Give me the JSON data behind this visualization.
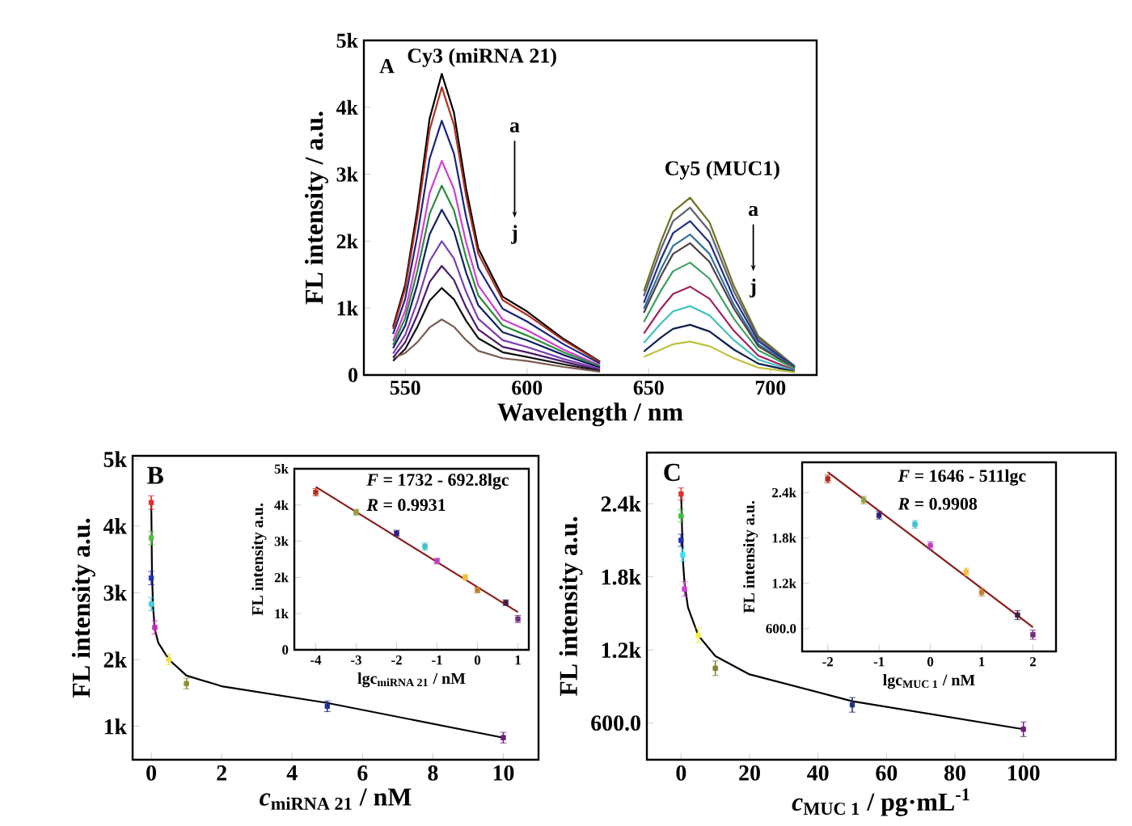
{
  "chart_data": [
    {
      "type": "line",
      "xlabel": "Wavelength / nm",
      "ylabel": "FL intensity / a.u.",
      "xlim": [
        533,
        719
      ],
      "ylim": [
        0,
        5000
      ],
      "xticks": [
        550,
        600,
        650,
        700
      ],
      "yticks": [
        0,
        {
          "value": 1000,
          "label": "1k"
        },
        {
          "value": 2000,
          "label": "2k"
        },
        {
          "value": 3000,
          "label": "3k"
        },
        {
          "value": 4000,
          "label": "4k"
        },
        {
          "value": 5000,
          "label": "5k"
        }
      ],
      "annotations": [
        "A",
        {
          "text": "Cy3 (miRNA 21)",
          "x": 565,
          "y": 4500
        },
        {
          "text": "Cy5 (MUC1)",
          "x": 667,
          "y": 2650
        },
        "a",
        "j",
        "a",
        "j"
      ],
      "series": [
        {
          "color": "#000000",
          "x": [
            545,
            550,
            555,
            560,
            565,
            570,
            575,
            580,
            590,
            600,
            615,
            630
          ],
          "values": [
            720,
            1350,
            2480,
            3830,
            4500,
            3920,
            2790,
            1890,
            1170,
            950,
            540,
            200
          ]
        },
        {
          "color": "#b03020",
          "x": [
            545,
            550,
            555,
            560,
            565,
            570,
            575,
            580,
            590,
            600,
            615,
            630
          ],
          "values": [
            690,
            1290,
            2370,
            3660,
            4300,
            3740,
            2670,
            1810,
            1120,
            900,
            520,
            190
          ]
        },
        {
          "color": "#1a237e",
          "x": [
            545,
            550,
            555,
            560,
            565,
            570,
            575,
            580,
            590,
            600,
            615,
            630
          ],
          "values": [
            610,
            1140,
            2090,
            3230,
            3800,
            3310,
            2360,
            1600,
            990,
            800,
            460,
            170
          ]
        },
        {
          "color": "#d040d0",
          "x": [
            545,
            550,
            555,
            560,
            565,
            570,
            575,
            580,
            590,
            600,
            615,
            630
          ],
          "values": [
            510,
            960,
            1760,
            2720,
            3200,
            2780,
            1980,
            1340,
            830,
            670,
            380,
            140
          ]
        },
        {
          "color": "#2e8b3e",
          "x": [
            545,
            550,
            555,
            560,
            565,
            570,
            575,
            580,
            590,
            600,
            615,
            630
          ],
          "values": [
            450,
            850,
            1560,
            2410,
            2830,
            2460,
            1750,
            1190,
            740,
            590,
            340,
            130
          ]
        },
        {
          "color": "#102060",
          "x": [
            545,
            550,
            555,
            560,
            565,
            570,
            575,
            580,
            590,
            600,
            615,
            630
          ],
          "values": [
            400,
            740,
            1360,
            2100,
            2470,
            2150,
            1530,
            1040,
            640,
            520,
            300,
            110
          ]
        },
        {
          "color": "#7a3fb0",
          "x": [
            545,
            550,
            555,
            560,
            565,
            570,
            575,
            580,
            590,
            600,
            615,
            630
          ],
          "values": [
            320,
            600,
            1100,
            1700,
            2000,
            1740,
            1240,
            840,
            520,
            420,
            240,
            90
          ]
        },
        {
          "color": "#4b1a6a",
          "x": [
            545,
            550,
            555,
            560,
            565,
            570,
            575,
            580,
            590,
            600,
            615,
            630
          ],
          "values": [
            260,
            490,
            900,
            1390,
            1630,
            1420,
            1010,
            680,
            420,
            340,
            200,
            70
          ]
        },
        {
          "color": "#101010",
          "x": [
            545,
            550,
            555,
            560,
            565,
            570,
            575,
            580,
            590,
            600,
            615,
            630
          ],
          "values": [
            210,
            390,
            720,
            1110,
            1300,
            1130,
            810,
            550,
            340,
            270,
            160,
            60
          ]
        },
        {
          "color": "#7a5a50",
          "x": [
            545,
            550,
            555,
            560,
            565,
            570,
            575,
            580,
            590,
            600,
            615,
            630
          ],
          "values": [
            250,
            330,
            490,
            710,
            830,
            720,
            520,
            360,
            250,
            210,
            120,
            50
          ]
        },
        {
          "color": "#707020",
          "x": [
            648,
            655,
            660,
            667,
            675,
            685,
            695,
            710
          ],
          "values": [
            1250,
            1990,
            2440,
            2650,
            2280,
            1330,
            580,
            130
          ]
        },
        {
          "color": "#606070",
          "x": [
            648,
            655,
            660,
            667,
            675,
            685,
            695,
            710
          ],
          "values": [
            1180,
            1880,
            2300,
            2500,
            2150,
            1250,
            550,
            130
          ]
        },
        {
          "color": "#203080",
          "x": [
            648,
            655,
            660,
            667,
            675,
            685,
            695,
            710
          ],
          "values": [
            1080,
            1730,
            2120,
            2300,
            1980,
            1150,
            510,
            120
          ]
        },
        {
          "color": "#3070a0",
          "x": [
            648,
            655,
            660,
            667,
            675,
            685,
            695,
            710
          ],
          "values": [
            990,
            1580,
            1930,
            2100,
            1810,
            1050,
            460,
            110
          ]
        },
        {
          "color": "#504040",
          "x": [
            648,
            655,
            660,
            667,
            675,
            685,
            695,
            710
          ],
          "values": [
            930,
            1480,
            1810,
            1970,
            1690,
            990,
            430,
            100
          ]
        },
        {
          "color": "#40a060",
          "x": [
            648,
            655,
            660,
            667,
            675,
            685,
            695,
            710
          ],
          "values": [
            790,
            1260,
            1550,
            1680,
            1440,
            840,
            370,
            90
          ]
        },
        {
          "color": "#a02060",
          "x": [
            648,
            655,
            660,
            667,
            675,
            685,
            695,
            710
          ],
          "values": [
            620,
            990,
            1210,
            1320,
            1140,
            660,
            290,
            70
          ]
        },
        {
          "color": "#40c0c0",
          "x": [
            648,
            655,
            660,
            667,
            675,
            685,
            695,
            710
          ],
          "values": [
            480,
            770,
            950,
            1030,
            890,
            520,
            230,
            60
          ]
        },
        {
          "color": "#102050",
          "x": [
            648,
            655,
            660,
            667,
            675,
            685,
            695,
            710
          ],
          "values": [
            350,
            560,
            690,
            750,
            650,
            380,
            170,
            50
          ]
        },
        {
          "color": "#c0c040",
          "x": [
            648,
            655,
            660,
            667,
            675,
            685,
            695,
            710
          ],
          "values": [
            270,
            380,
            460,
            500,
            430,
            250,
            110,
            40
          ]
        }
      ]
    },
    {
      "type": "scatter",
      "xlabel": "*c*$_{miRNA 21}$ / nM",
      "ylabel": "FL intensity a.u.",
      "xlim": [
        -0.53,
        11
      ],
      "ylim": [
        500,
        5050
      ],
      "xticks": [
        0,
        2,
        4,
        6,
        8,
        10
      ],
      "yticks": [
        {
          "value": 1000,
          "label": "1k"
        },
        {
          "value": 2000,
          "label": "2k"
        },
        {
          "value": 3000,
          "label": "3k"
        },
        {
          "value": 4000,
          "label": "4k"
        },
        {
          "value": 5000,
          "label": "5k"
        }
      ],
      "annotations": [
        "B"
      ],
      "series": [
        {
          "type": "line",
          "color": "#000000",
          "x": [
            0,
            0.02,
            0.05,
            0.1,
            0.2,
            0.5,
            1,
            2,
            5,
            10
          ],
          "values": [
            4350,
            3300,
            2800,
            2450,
            2250,
            2000,
            1760,
            1600,
            1350,
            830
          ]
        },
        {
          "type": "scatter",
          "marker": "square",
          "x": [
            0,
            0,
            0,
            0,
            0.1,
            0.5,
            1,
            5,
            10
          ],
          "values": [
            4350,
            3820,
            3220,
            2830,
            2480,
            2000,
            1640,
            1300,
            830
          ],
          "errors": [
            100,
            100,
            100,
            100,
            100,
            80,
            80,
            80,
            80
          ],
          "colors": [
            "#e03030",
            "#50c040",
            "#2030b0",
            "#40d0e0",
            "#c030c0",
            "#f0e040",
            "#909030",
            "#203090",
            "#702080"
          ]
        }
      ]
    },
    {
      "type": "scatter",
      "xlabel": "lgc$_{miRNA 21}$ / nM",
      "ylabel": "FL intensity a.u.",
      "xlim": [
        -4.53,
        1.27
      ],
      "ylim": [
        0,
        5000
      ],
      "xticks": [
        -4,
        -3,
        -2,
        -1,
        0,
        1
      ],
      "yticks": [
        0,
        {
          "value": 1000,
          "label": "1k"
        },
        {
          "value": 2000,
          "label": "2k"
        },
        {
          "value": 3000,
          "label": "3k"
        },
        {
          "value": 4000,
          "label": "4k"
        },
        {
          "value": 5000,
          "label": "5k"
        }
      ],
      "annotations": [
        "*F* = 1732 - 692.8lgc",
        "*R* = 0.9931"
      ],
      "series": [
        {
          "type": "line",
          "color": "#8b1a1a",
          "x": [
            -4,
            1
          ],
          "values": [
            4500,
            1040
          ]
        },
        {
          "type": "scatter",
          "marker": "square",
          "x": [
            -4,
            -3,
            -2,
            -1.3,
            -1,
            -0.3,
            0,
            0.7,
            1
          ],
          "values": [
            4350,
            3800,
            3220,
            2850,
            2450,
            2000,
            1650,
            1300,
            850
          ],
          "errors": [
            100,
            80,
            80,
            100,
            80,
            80,
            80,
            80,
            100
          ],
          "colors": [
            "#b03020",
            "#90a040",
            "#302080",
            "#40c0d0",
            "#c040c0",
            "#f0c040",
            "#c08030",
            "#402040",
            "#703080"
          ]
        }
      ]
    },
    {
      "type": "scatter",
      "xlabel": "*c*$_{MUC 1}$ / pg·mL$^{-1}$",
      "ylabel": "FL intensity a.u.",
      "xlim": [
        -10,
        127
      ],
      "ylim": [
        300,
        2820
      ],
      "xticks": [
        0,
        20,
        40,
        60,
        80,
        100
      ],
      "yticks": [
        {
          "value": 600,
          "label": "600.0"
        },
        {
          "value": 1200,
          "label": "1.2k"
        },
        {
          "value": 1800,
          "label": "1.8k"
        },
        {
          "value": 2400,
          "label": "2.4k"
        }
      ],
      "annotations": [
        "C"
      ],
      "series": [
        {
          "type": "line",
          "color": "#000000",
          "x": [
            0,
            0.5,
            1,
            2,
            5,
            10,
            20,
            50,
            100
          ],
          "values": [
            2500,
            1950,
            1750,
            1550,
            1320,
            1150,
            1000,
            780,
            550
          ]
        },
        {
          "type": "scatter",
          "marker": "square",
          "x": [
            0,
            0,
            0,
            0.5,
            1,
            5,
            10,
            50,
            100
          ],
          "values": [
            2480,
            2300,
            2100,
            1980,
            1700,
            1320,
            1050,
            750,
            550
          ],
          "errors": [
            50,
            50,
            50,
            50,
            60,
            60,
            60,
            60,
            60
          ],
          "colors": [
            "#e03030",
            "#40c040",
            "#2030b0",
            "#40e0f0",
            "#d040d0",
            "#f0f040",
            "#808030",
            "#203080",
            "#702080"
          ]
        }
      ]
    },
    {
      "type": "scatter",
      "xlabel": "lgc$_{MUC 1}$ / nM",
      "ylabel": "FL intensity a.u.",
      "xlim": [
        -2.5,
        2.45
      ],
      "ylim": [
        300,
        2800
      ],
      "xticks": [
        -2,
        -1,
        0,
        1,
        2
      ],
      "yticks": [
        {
          "value": 600,
          "label": "600.0"
        },
        {
          "value": 1200,
          "label": "1.2k"
        },
        {
          "value": 1800,
          "label": "1.8k"
        },
        {
          "value": 2400,
          "label": "2.4k"
        }
      ],
      "annotations": [
        "*F* = 1646 - 511lgc",
        "*R* = 0.9908"
      ],
      "series": [
        {
          "type": "line",
          "color": "#8b1a1a",
          "x": [
            -2,
            2
          ],
          "values": [
            2670,
            620
          ]
        },
        {
          "type": "scatter",
          "marker": "square",
          "x": [
            -2,
            -1.3,
            -1,
            -0.3,
            0,
            0.7,
            1,
            1.7,
            2
          ],
          "values": [
            2580,
            2300,
            2100,
            1980,
            1700,
            1350,
            1080,
            780,
            520
          ],
          "errors": [
            50,
            50,
            50,
            50,
            50,
            50,
            50,
            60,
            60
          ],
          "colors": [
            "#b03020",
            "#90a040",
            "#302080",
            "#40c0d0",
            "#c040c0",
            "#f0c040",
            "#c08030",
            "#402040",
            "#703080"
          ]
        }
      ]
    }
  ]
}
